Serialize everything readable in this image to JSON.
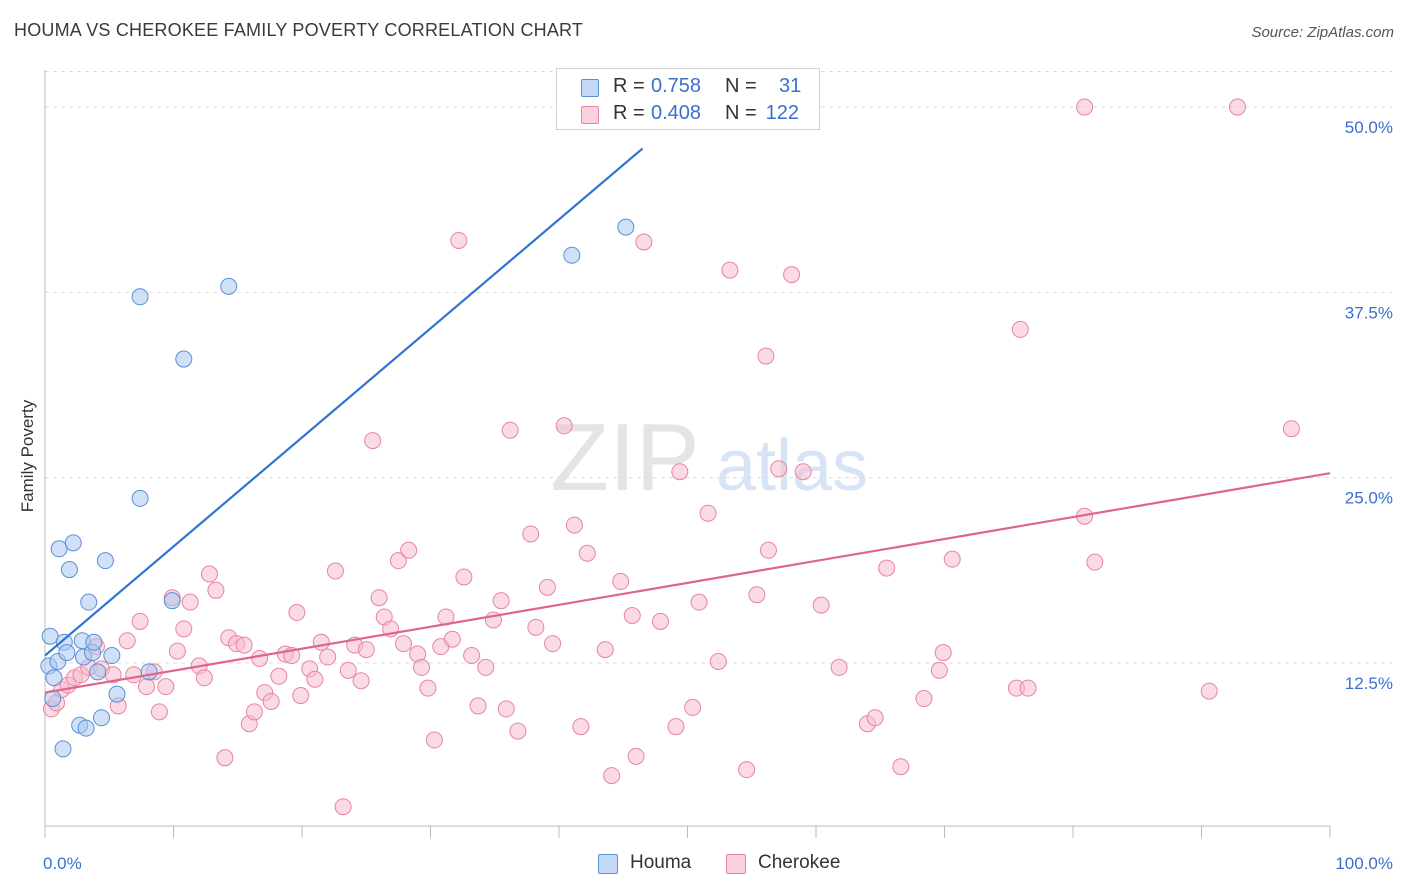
{
  "header": {
    "title": "HOUMA VS CHEROKEE FAMILY POVERTY CORRELATION CHART",
    "source": "Source: ZipAtlas.com"
  },
  "watermark": {
    "zip": "ZIP",
    "atlas": "atlas"
  },
  "legend_top": {
    "rows": [
      {
        "r_label": "R =",
        "r_value": "0.758",
        "n_label": "N =",
        "n_value": "31",
        "color": "#a9c8f0"
      },
      {
        "r_label": "R =",
        "r_value": "0.408",
        "n_label": "N =",
        "n_value": "122",
        "color": "#f5bccf"
      }
    ]
  },
  "legend_bottom": [
    {
      "label": "Houma",
      "color": "#a9c8f0"
    },
    {
      "label": "Cherokee",
      "color": "#f5bccf"
    }
  ],
  "colors": {
    "houma_fill": "#a9c8f0",
    "houma_stroke": "#5b8fd8",
    "houma_line": "#2f74d0",
    "cherokee_fill": "#f5bccf",
    "cherokee_stroke": "#e7859f",
    "cherokee_line": "#e0648c",
    "axis_text": "#3b6fcf",
    "grid": "#dcdcdc"
  },
  "chart_data": {
    "type": "scatter",
    "title": "HOUMA VS CHEROKEE FAMILY POVERTY CORRELATION CHART",
    "xlabel": "",
    "ylabel": "Family Poverty",
    "xlim": [
      0,
      100
    ],
    "ylim": [
      1.5,
      52.5
    ],
    "x_tick_labels": [
      "0.0%",
      "100.0%"
    ],
    "y_ticks": [
      12.5,
      25.0,
      37.5,
      50.0
    ],
    "y_tick_labels": [
      "12.5%",
      "25.0%",
      "37.5%",
      "50.0%"
    ],
    "grid": "dashed horizontal",
    "legend": "bottom-center",
    "series": [
      {
        "name": "Houma",
        "trend": {
          "x": [
            0.0,
            46.5
          ],
          "y": [
            13.0,
            47.2
          ]
        },
        "points": [
          [
            0.3,
            12.3
          ],
          [
            0.4,
            14.3
          ],
          [
            0.6,
            10.1
          ],
          [
            0.7,
            11.5
          ],
          [
            1.0,
            12.6
          ],
          [
            1.1,
            20.2
          ],
          [
            1.4,
            6.7
          ],
          [
            1.5,
            13.9
          ],
          [
            1.7,
            13.2
          ],
          [
            1.9,
            18.8
          ],
          [
            2.2,
            20.6
          ],
          [
            2.7,
            8.3
          ],
          [
            2.9,
            14.0
          ],
          [
            3.0,
            12.9
          ],
          [
            3.2,
            8.1
          ],
          [
            3.4,
            16.6
          ],
          [
            3.7,
            13.2
          ],
          [
            3.8,
            13.9
          ],
          [
            4.1,
            11.9
          ],
          [
            4.4,
            8.8
          ],
          [
            4.7,
            19.4
          ],
          [
            5.2,
            13.0
          ],
          [
            5.6,
            10.4
          ],
          [
            7.4,
            37.2
          ],
          [
            7.4,
            23.6
          ],
          [
            8.1,
            11.9
          ],
          [
            9.9,
            16.7
          ],
          [
            10.8,
            33.0
          ],
          [
            14.3,
            37.9
          ],
          [
            41.0,
            40.0
          ],
          [
            45.2,
            41.9
          ]
        ]
      },
      {
        "name": "Cherokee",
        "trend": {
          "x": [
            0.0,
            100.0
          ],
          "y": [
            10.5,
            25.3
          ]
        },
        "points": [
          [
            0.5,
            9.4
          ],
          [
            0.9,
            9.8
          ],
          [
            1.3,
            10.7
          ],
          [
            1.8,
            11.0
          ],
          [
            2.3,
            11.5
          ],
          [
            2.8,
            11.7
          ],
          [
            3.4,
            12.2
          ],
          [
            4.0,
            13.6
          ],
          [
            4.4,
            12.1
          ],
          [
            5.3,
            11.7
          ],
          [
            5.7,
            9.6
          ],
          [
            6.4,
            14.0
          ],
          [
            6.9,
            11.7
          ],
          [
            7.4,
            15.3
          ],
          [
            7.9,
            10.9
          ],
          [
            8.5,
            11.9
          ],
          [
            8.9,
            9.2
          ],
          [
            9.4,
            10.9
          ],
          [
            9.9,
            16.9
          ],
          [
            10.3,
            13.3
          ],
          [
            10.8,
            14.8
          ],
          [
            11.3,
            16.6
          ],
          [
            12.0,
            12.3
          ],
          [
            12.4,
            11.5
          ],
          [
            12.8,
            18.5
          ],
          [
            13.3,
            17.4
          ],
          [
            14.0,
            6.1
          ],
          [
            14.3,
            14.2
          ],
          [
            14.9,
            13.8
          ],
          [
            15.5,
            13.7
          ],
          [
            15.9,
            8.4
          ],
          [
            16.3,
            9.2
          ],
          [
            16.7,
            12.8
          ],
          [
            17.1,
            10.5
          ],
          [
            17.6,
            9.9
          ],
          [
            18.2,
            11.6
          ],
          [
            18.7,
            13.1
          ],
          [
            19.2,
            13.0
          ],
          [
            19.6,
            15.9
          ],
          [
            19.9,
            10.3
          ],
          [
            20.6,
            12.1
          ],
          [
            21.0,
            11.4
          ],
          [
            21.5,
            13.9
          ],
          [
            22.0,
            12.9
          ],
          [
            22.6,
            18.7
          ],
          [
            23.2,
            2.8
          ],
          [
            23.6,
            12.0
          ],
          [
            24.1,
            13.7
          ],
          [
            24.6,
            11.3
          ],
          [
            25.0,
            13.4
          ],
          [
            25.5,
            27.5
          ],
          [
            26.0,
            16.9
          ],
          [
            26.4,
            15.6
          ],
          [
            26.9,
            14.8
          ],
          [
            27.5,
            19.4
          ],
          [
            27.9,
            13.8
          ],
          [
            28.3,
            20.1
          ],
          [
            29.0,
            13.1
          ],
          [
            29.3,
            12.2
          ],
          [
            29.8,
            10.8
          ],
          [
            30.3,
            7.3
          ],
          [
            30.8,
            13.6
          ],
          [
            31.2,
            15.6
          ],
          [
            31.7,
            14.1
          ],
          [
            32.2,
            41.0
          ],
          [
            32.6,
            18.3
          ],
          [
            33.2,
            13.0
          ],
          [
            33.7,
            9.6
          ],
          [
            34.3,
            12.2
          ],
          [
            34.9,
            15.4
          ],
          [
            35.5,
            16.7
          ],
          [
            35.9,
            9.4
          ],
          [
            36.2,
            28.2
          ],
          [
            36.8,
            7.9
          ],
          [
            37.8,
            21.2
          ],
          [
            38.2,
            14.9
          ],
          [
            39.1,
            17.6
          ],
          [
            39.5,
            13.8
          ],
          [
            40.4,
            28.5
          ],
          [
            41.2,
            21.8
          ],
          [
            41.7,
            8.2
          ],
          [
            42.2,
            19.9
          ],
          [
            43.6,
            13.4
          ],
          [
            44.1,
            4.9
          ],
          [
            44.8,
            18.0
          ],
          [
            45.7,
            15.7
          ],
          [
            46.0,
            6.2
          ],
          [
            46.6,
            40.9
          ],
          [
            47.9,
            15.3
          ],
          [
            49.1,
            8.2
          ],
          [
            49.4,
            25.4
          ],
          [
            50.4,
            9.5
          ],
          [
            50.9,
            16.6
          ],
          [
            51.6,
            22.6
          ],
          [
            52.4,
            12.6
          ],
          [
            53.3,
            39.0
          ],
          [
            54.6,
            5.3
          ],
          [
            55.4,
            17.1
          ],
          [
            56.1,
            33.2
          ],
          [
            56.3,
            20.1
          ],
          [
            57.1,
            25.6
          ],
          [
            58.1,
            38.7
          ],
          [
            59.0,
            25.4
          ],
          [
            60.4,
            16.4
          ],
          [
            61.8,
            12.2
          ],
          [
            64.0,
            8.4
          ],
          [
            64.6,
            8.8
          ],
          [
            65.5,
            18.9
          ],
          [
            66.6,
            5.5
          ],
          [
            68.4,
            10.1
          ],
          [
            69.6,
            12.0
          ],
          [
            69.9,
            13.2
          ],
          [
            70.6,
            19.5
          ],
          [
            75.6,
            10.8
          ],
          [
            75.9,
            35.0
          ],
          [
            76.5,
            10.8
          ],
          [
            80.9,
            22.4
          ],
          [
            80.9,
            50.0
          ],
          [
            81.7,
            19.3
          ],
          [
            90.6,
            10.6
          ],
          [
            92.8,
            50.0
          ],
          [
            97.0,
            28.3
          ]
        ]
      }
    ]
  }
}
